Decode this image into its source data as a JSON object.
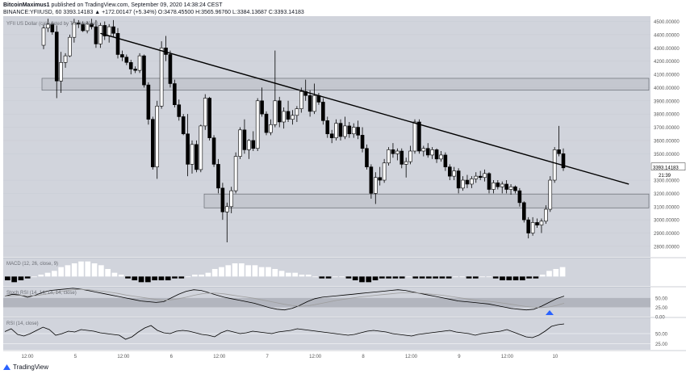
{
  "header": {
    "line1_author": "BitcoinMaximus1",
    "line1_rest": "published on TradingView.com, September 09, 2020 14:38:24 CEST",
    "line2": "BINANCE:YFIIUSD, 60  3393.14183 ▲ +172.00147 (+5.34%) O:3478.45500 H:3565.96760 L:3384.13687 C:3393.14183"
  },
  "chart_data": [
    {
      "type": "candlestick",
      "title": "YFII US Dollar (calculated by TradingView)",
      "price_labels": [
        "4500.00000",
        "4400.00000",
        "4300.00000",
        "4200.00000",
        "4100.00000",
        "4000.00000",
        "3900.00000",
        "3800.00000",
        "3700.00000",
        "3600.00000",
        "3500.00000",
        "3300.00000",
        "3200.00000",
        "3100.00000",
        "3000.00000",
        "2900.00000",
        "2800.00000"
      ],
      "ylim": [
        2720,
        4540
      ],
      "last_price": "3393.14183",
      "countdown": "21:39",
      "x_ticks": [
        "12:00",
        "5",
        "12:00",
        "6",
        "12:00",
        "7",
        "12:00",
        "8",
        "12:00",
        "9",
        "12:00",
        "10"
      ],
      "x_range_hours": [
        0,
        150
      ],
      "candles_ohlc": [
        [
          4320,
          4475,
          4290,
          4450
        ],
        [
          4450,
          4520,
          4420,
          4480
        ],
        [
          4480,
          4500,
          4400,
          4420
        ],
        [
          4420,
          4470,
          3920,
          4050
        ],
        [
          4050,
          4270,
          3960,
          4190
        ],
        [
          4190,
          4260,
          4150,
          4240
        ],
        [
          4240,
          4400,
          4230,
          4380
        ],
        [
          4380,
          4520,
          4340,
          4490
        ],
        [
          4490,
          4510,
          4450,
          4480
        ],
        [
          4480,
          4500,
          4420,
          4430
        ],
        [
          4430,
          4500,
          4410,
          4480
        ],
        [
          4480,
          4520,
          4440,
          4460
        ],
        [
          4460,
          4510,
          4300,
          4330
        ],
        [
          4330,
          4490,
          4300,
          4470
        ],
        [
          4470,
          4500,
          4360,
          4390
        ],
        [
          4390,
          4480,
          4340,
          4460
        ],
        [
          4460,
          4510,
          4380,
          4410
        ],
        [
          4410,
          4450,
          4220,
          4250
        ],
        [
          4250,
          4280,
          4200,
          4230
        ],
        [
          4230,
          4250,
          4170,
          4190
        ],
        [
          4190,
          4210,
          4100,
          4140
        ],
        [
          4140,
          4160,
          4110,
          4130
        ],
        [
          4130,
          4260,
          4110,
          4240
        ],
        [
          4240,
          4250,
          4000,
          4020
        ],
        [
          4020,
          4040,
          3720,
          3760
        ],
        [
          3760,
          3780,
          3380,
          3400
        ],
        [
          3400,
          3900,
          3310,
          3860
        ],
        [
          3860,
          4350,
          3840,
          4300
        ],
        [
          4300,
          4390,
          4200,
          4250
        ],
        [
          4250,
          4280,
          4000,
          4030
        ],
        [
          4030,
          4060,
          3850,
          3870
        ],
        [
          3870,
          3910,
          3750,
          3780
        ],
        [
          3780,
          3800,
          3640,
          3650
        ],
        [
          3650,
          3800,
          3330,
          3420
        ],
        [
          3420,
          3600,
          3350,
          3570
        ],
        [
          3570,
          3600,
          3360,
          3380
        ],
        [
          3380,
          3720,
          3360,
          3710
        ],
        [
          3710,
          3950,
          3680,
          3920
        ],
        [
          3920,
          3930,
          3600,
          3620
        ],
        [
          3620,
          3640,
          3400,
          3420
        ],
        [
          3420,
          3460,
          3200,
          3240
        ],
        [
          3240,
          3280,
          3000,
          3060
        ],
        [
          3060,
          3130,
          2830,
          3100
        ],
        [
          3100,
          3250,
          3050,
          3220
        ],
        [
          3220,
          3510,
          3200,
          3480
        ],
        [
          3480,
          3700,
          3460,
          3680
        ],
        [
          3680,
          3760,
          3500,
          3530
        ],
        [
          3530,
          3610,
          3460,
          3600
        ],
        [
          3600,
          3670,
          3520,
          3540
        ],
        [
          3540,
          3920,
          3520,
          3900
        ],
        [
          3900,
          4000,
          3780,
          3800
        ],
        [
          3800,
          3820,
          3640,
          3660
        ],
        [
          3660,
          3760,
          3640,
          3720
        ],
        [
          3720,
          4280,
          3700,
          3900
        ],
        [
          3900,
          3930,
          3700,
          3740
        ],
        [
          3740,
          3850,
          3690,
          3820
        ],
        [
          3820,
          3900,
          3740,
          3760
        ],
        [
          3760,
          3830,
          3720,
          3790
        ],
        [
          3790,
          3860,
          3740,
          3840
        ],
        [
          3840,
          4000,
          3810,
          3970
        ],
        [
          3970,
          4060,
          3900,
          3940
        ],
        [
          3940,
          3980,
          3780,
          3820
        ],
        [
          3820,
          4030,
          3800,
          3940
        ],
        [
          3940,
          3960,
          3870,
          3890
        ],
        [
          3890,
          3920,
          3720,
          3750
        ],
        [
          3750,
          3780,
          3620,
          3650
        ],
        [
          3650,
          3680,
          3580,
          3620
        ],
        [
          3620,
          3760,
          3600,
          3730
        ],
        [
          3730,
          3760,
          3600,
          3630
        ],
        [
          3630,
          3780,
          3610,
          3710
        ],
        [
          3710,
          3740,
          3620,
          3650
        ],
        [
          3650,
          3730,
          3620,
          3700
        ],
        [
          3700,
          3750,
          3610,
          3640
        ],
        [
          3640,
          3700,
          3510,
          3540
        ],
        [
          3540,
          3570,
          3380,
          3400
        ],
        [
          3400,
          3420,
          3160,
          3200
        ],
        [
          3200,
          3360,
          3120,
          3320
        ],
        [
          3320,
          3400,
          3260,
          3300
        ],
        [
          3300,
          3460,
          3280,
          3430
        ],
        [
          3430,
          3550,
          3410,
          3530
        ],
        [
          3530,
          3580,
          3470,
          3500
        ],
        [
          3500,
          3540,
          3450,
          3520
        ],
        [
          3520,
          3540,
          3390,
          3420
        ],
        [
          3420,
          3470,
          3320,
          3440
        ],
        [
          3440,
          3560,
          3420,
          3520
        ],
        [
          3520,
          3760,
          3500,
          3740
        ],
        [
          3740,
          3760,
          3500,
          3520
        ],
        [
          3520,
          3560,
          3480,
          3540
        ],
        [
          3540,
          3580,
          3470,
          3490
        ],
        [
          3490,
          3550,
          3460,
          3530
        ],
        [
          3530,
          3540,
          3430,
          3460
        ],
        [
          3460,
          3520,
          3440,
          3490
        ],
        [
          3490,
          3510,
          3370,
          3400
        ],
        [
          3400,
          3420,
          3300,
          3330
        ],
        [
          3330,
          3400,
          3300,
          3370
        ],
        [
          3370,
          3390,
          3200,
          3240
        ],
        [
          3240,
          3330,
          3220,
          3300
        ],
        [
          3300,
          3340,
          3240,
          3270
        ],
        [
          3270,
          3330,
          3240,
          3310
        ],
        [
          3310,
          3360,
          3280,
          3330
        ],
        [
          3330,
          3370,
          3300,
          3320
        ],
        [
          3320,
          3380,
          3290,
          3350
        ],
        [
          3350,
          3360,
          3200,
          3230
        ],
        [
          3230,
          3300,
          3200,
          3280
        ],
        [
          3280,
          3300,
          3230,
          3250
        ],
        [
          3250,
          3290,
          3200,
          3270
        ],
        [
          3270,
          3300,
          3200,
          3230
        ],
        [
          3230,
          3270,
          3190,
          3250
        ],
        [
          3250,
          3260,
          3200,
          3220
        ],
        [
          3220,
          3240,
          3100,
          3130
        ],
        [
          3130,
          3140,
          2980,
          3000
        ],
        [
          3000,
          3020,
          2860,
          2900
        ],
        [
          2900,
          3020,
          2880,
          2980
        ],
        [
          2980,
          3010,
          2940,
          2960
        ],
        [
          2960,
          3010,
          2900,
          2990
        ],
        [
          2990,
          3110,
          2970,
          3080
        ],
        [
          3080,
          3330,
          3060,
          3300
        ],
        [
          3300,
          3550,
          3280,
          3530
        ],
        [
          3530,
          3710,
          3480,
          3500
        ],
        [
          3500,
          3540,
          3370,
          3393
        ]
      ],
      "trend_line": [
        [
          13,
          4410
        ],
        [
          134,
          3270
        ]
      ],
      "zones": [
        {
          "top": 4070,
          "bottom": 3980
        },
        {
          "top": 3195,
          "bottom": 3090
        }
      ]
    },
    {
      "type": "bar",
      "title": "MACD (12, 26, close, 9)",
      "ylim": [
        -5,
        10
      ],
      "values": [
        -2,
        -3,
        -2,
        -1,
        0,
        1,
        2,
        3,
        5,
        6,
        7,
        8,
        8,
        7,
        6,
        4,
        2,
        1,
        -1,
        -2,
        -3,
        -3,
        -2,
        -2,
        -2,
        -1,
        -1,
        0,
        1,
        1,
        2,
        4,
        5,
        6,
        7,
        7,
        6,
        6,
        5,
        5,
        4,
        3,
        2,
        2,
        1,
        1,
        0,
        -1,
        -1,
        0,
        0,
        -1,
        -2,
        -3,
        -3,
        -2,
        -1,
        -1,
        -1,
        -1,
        0,
        -1,
        -1,
        -1,
        -1,
        -1,
        -1,
        0,
        0,
        -1,
        -1,
        0,
        0,
        -1,
        -2,
        -2,
        -2,
        -2,
        -1,
        -1,
        1,
        3,
        4,
        5
      ]
    },
    {
      "type": "line",
      "title": "Stoch RSI (14, 14, 14, 14, close)",
      "y_labels": [
        "50.00",
        "25.00",
        "0.00"
      ],
      "ylim": [
        0,
        80
      ],
      "series": [
        {
          "values": [
            55,
            60,
            58,
            52,
            57,
            65,
            70,
            72,
            74,
            76,
            74,
            70,
            66,
            62,
            58,
            54,
            50,
            46,
            42,
            40,
            38,
            40,
            50,
            60,
            68,
            72,
            70,
            64,
            58,
            52,
            48,
            44,
            40,
            36,
            30,
            24,
            20,
            18,
            22,
            30,
            40,
            48,
            52,
            54,
            56,
            58,
            60,
            62,
            64,
            66,
            68,
            70,
            72,
            70,
            66,
            62,
            58,
            54,
            50,
            46,
            42,
            40,
            38,
            36,
            34,
            30,
            26,
            22,
            20,
            18,
            20,
            28,
            38,
            48,
            55
          ]
        },
        {
          "values": [
            55,
            56,
            57,
            56,
            56,
            59,
            62,
            66,
            69,
            72,
            73,
            72,
            70,
            68,
            65,
            62,
            58,
            55,
            52,
            49,
            46,
            44,
            45,
            48,
            52,
            57,
            61,
            63,
            63,
            61,
            58,
            55,
            52,
            49,
            45,
            41,
            37,
            33,
            30,
            28,
            29,
            32,
            36,
            40,
            44,
            47,
            50,
            53,
            55,
            57,
            59,
            61,
            63,
            64,
            64,
            63,
            61,
            59,
            57,
            54,
            51,
            48,
            45,
            43,
            41,
            39,
            36,
            33,
            30,
            27,
            25,
            24,
            26,
            30,
            36
          ]
        }
      ]
    },
    {
      "type": "line",
      "title": "RSI (14, close)",
      "y_labels": [
        "50.00",
        "25.00"
      ],
      "ylim": [
        10,
        90
      ],
      "series": [
        {
          "values": [
            55,
            62,
            48,
            44,
            50,
            58,
            66,
            60,
            46,
            50,
            56,
            54,
            60,
            58,
            56,
            52,
            50,
            48,
            46,
            36,
            42,
            54,
            64,
            70,
            58,
            52,
            50,
            56,
            58,
            56,
            52,
            48,
            46,
            42,
            52,
            58,
            54,
            50,
            52,
            56,
            54,
            52,
            50,
            54,
            56,
            58,
            62,
            60,
            58,
            56,
            54,
            52,
            50,
            48,
            46,
            48,
            52,
            56,
            58,
            56,
            54,
            50,
            48,
            46,
            44,
            48,
            50,
            52,
            54,
            56,
            58,
            54,
            52,
            50,
            46,
            50,
            52,
            54,
            56,
            60,
            54,
            48,
            42,
            40,
            46,
            56,
            68,
            72,
            74
          ]
        }
      ]
    }
  ],
  "footer": {
    "brand": "TradingView"
  }
}
